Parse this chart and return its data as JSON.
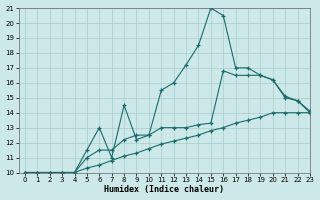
{
  "xlabel": "Humidex (Indice chaleur)",
  "bg_color": "#cce8e8",
  "line_color": "#1a6b6b",
  "grid_color": "#aacccc",
  "xlim": [
    -0.5,
    23
  ],
  "ylim": [
    10,
    21
  ],
  "xticks": [
    0,
    1,
    2,
    3,
    4,
    5,
    6,
    7,
    8,
    9,
    10,
    11,
    12,
    13,
    14,
    15,
    16,
    17,
    18,
    19,
    20,
    21,
    22,
    23
  ],
  "yticks": [
    10,
    11,
    12,
    13,
    14,
    15,
    16,
    17,
    18,
    19,
    20,
    21
  ],
  "curve1_x": [
    0,
    1,
    2,
    3,
    4,
    5,
    6,
    7,
    8,
    9,
    10,
    11,
    12,
    13,
    14,
    15,
    16,
    17,
    18,
    19,
    20,
    21,
    22,
    23
  ],
  "curve1_y": [
    10,
    10,
    10,
    10,
    10,
    11.5,
    13,
    11,
    14.5,
    12.2,
    12.5,
    15.5,
    16,
    17.2,
    18.5,
    21,
    20.5,
    17,
    17,
    16.5,
    16.2,
    15,
    14.8,
    14
  ],
  "curve2_x": [
    0,
    1,
    2,
    3,
    4,
    5,
    6,
    7,
    8,
    9,
    10,
    11,
    12,
    13,
    14,
    15,
    16,
    17,
    18,
    19,
    20,
    21,
    22,
    23
  ],
  "curve2_y": [
    10,
    10,
    10,
    10,
    10,
    11,
    11.5,
    11.5,
    12.2,
    12.5,
    12.5,
    13,
    13,
    13,
    13.2,
    13.3,
    16.8,
    16.5,
    16.5,
    16.5,
    16.2,
    15.1,
    14.8,
    14.1
  ],
  "curve3_x": [
    0,
    1,
    2,
    3,
    4,
    5,
    6,
    7,
    8,
    9,
    10,
    11,
    12,
    13,
    14,
    15,
    16,
    17,
    18,
    19,
    20,
    21,
    22,
    23
  ],
  "curve3_y": [
    10,
    10,
    10,
    10,
    10,
    10.3,
    10.5,
    10.8,
    11.1,
    11.3,
    11.6,
    11.9,
    12.1,
    12.3,
    12.5,
    12.8,
    13.0,
    13.3,
    13.5,
    13.7,
    14.0,
    14.0,
    14.0,
    14.0
  ]
}
